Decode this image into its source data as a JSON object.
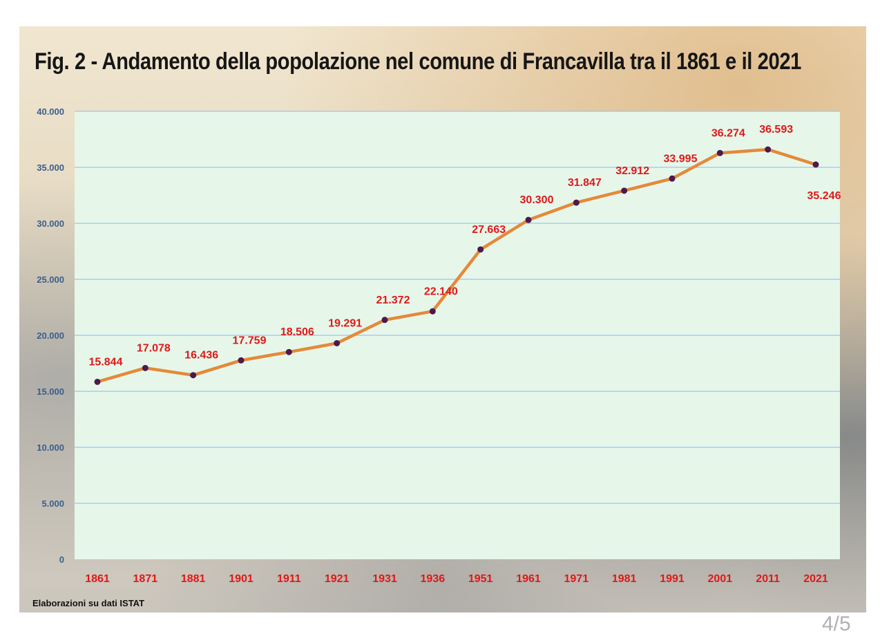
{
  "chart_data": {
    "type": "line",
    "title": "Fig. 2 - Andamento della popolazione nel comune di Francavilla tra il 1861 e il 2021",
    "categories": [
      "1861",
      "1871",
      "1881",
      "1901",
      "1911",
      "1921",
      "1931",
      "1936",
      "1951",
      "1961",
      "1971",
      "1981",
      "1991",
      "2001",
      "2011",
      "2021"
    ],
    "series": [
      {
        "values": [
          15844,
          17078,
          16436,
          17759,
          18506,
          19291,
          21372,
          22140,
          27663,
          30300,
          31847,
          32912,
          33995,
          36274,
          36593,
          35246
        ],
        "labels": [
          "15.844",
          "17.078",
          "16.436",
          "17.759",
          "18.506",
          "19.291",
          "21.372",
          "22.140",
          "27.663",
          "30.300",
          "31.847",
          "32.912",
          "33.995",
          "36.274",
          "36.593",
          "35.246"
        ]
      }
    ],
    "ylim": [
      0,
      40000
    ],
    "yticks": [
      "0",
      "5.000",
      "10.000",
      "15.000",
      "20.000",
      "25.000",
      "30.000",
      "35.000",
      "40.000"
    ],
    "xlabel": "",
    "ylabel": "",
    "grid": true,
    "colors": {
      "line": "#e5893a",
      "marker": "#4a1a4e",
      "labels": "#e01818",
      "yticks": "#3a5e8c",
      "plot_bg": "#e6f7ea",
      "grid": "#9ec3ee"
    }
  },
  "source_note": "Elaborazioni su dati ISTAT",
  "page_indicator": "4/5"
}
